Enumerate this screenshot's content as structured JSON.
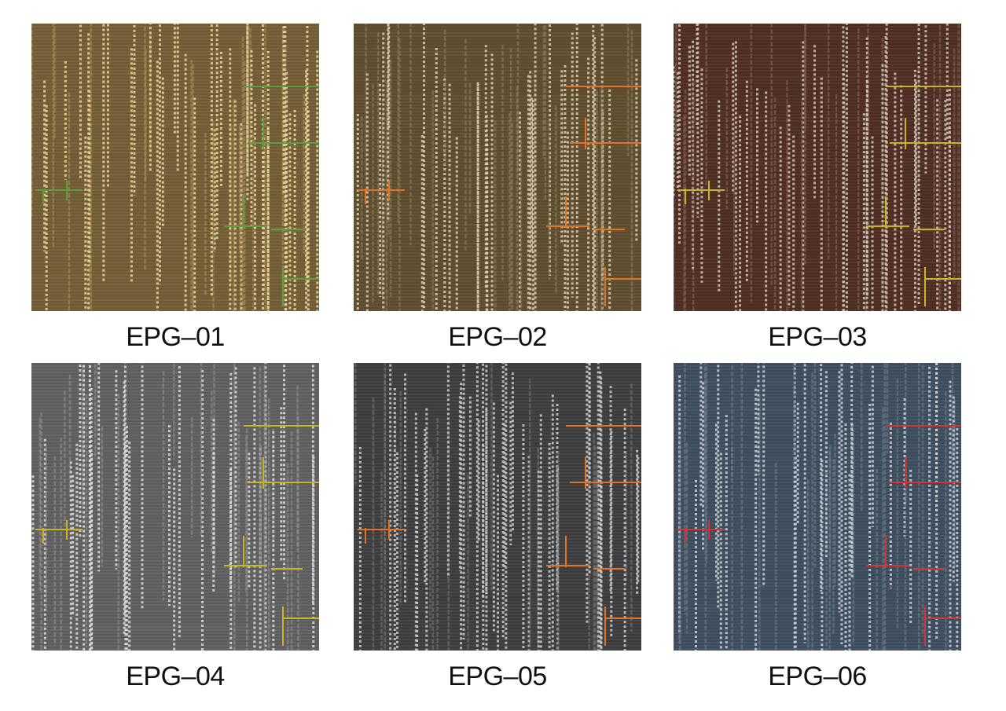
{
  "swatches": [
    {
      "label": "EPG–01"
    },
    {
      "label": "EPG–02"
    },
    {
      "label": "EPG–03"
    },
    {
      "label": "EPG–04"
    },
    {
      "label": "EPG–05"
    },
    {
      "label": "EPG–06"
    }
  ]
}
